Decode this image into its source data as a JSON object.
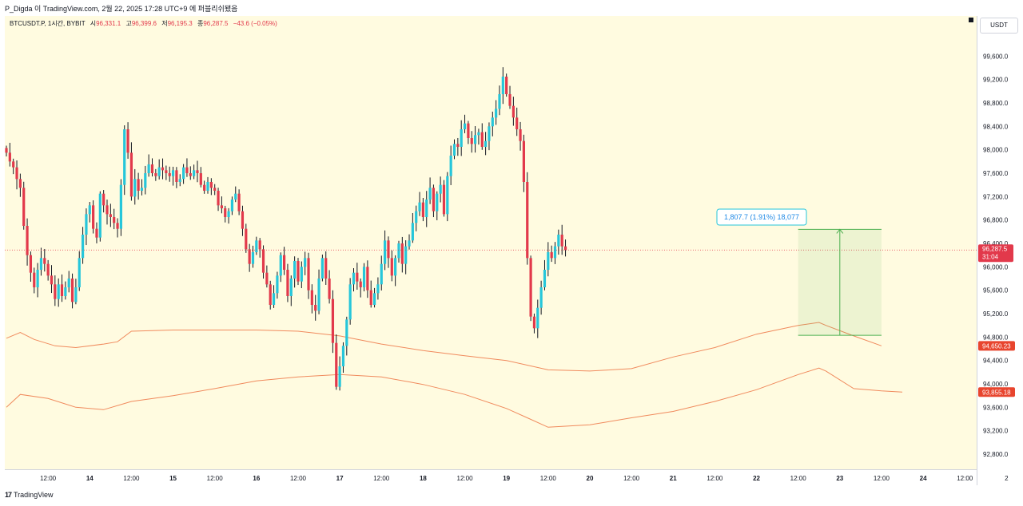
{
  "header": {
    "caption": "P_Digda 이 TradingView.com, 2월 22, 2025 17:28 UTC+9 에 퍼블리쉬됐음"
  },
  "legend": {
    "symbol": "BTCUSDT.P, 1시간, BYBIT",
    "open_label": "시",
    "open_value": "96,331.1",
    "high_label": "고",
    "high_value": "96,399.6",
    "low_label": "저",
    "low_value": "96,195.3",
    "close_label": "종",
    "close_value": "96,287.5",
    "change": "−43.6 (−0.05%)"
  },
  "currency": "USDT",
  "footer": {
    "brand": "TradingView",
    "logo": "17"
  },
  "colors": {
    "up": "#26c6da",
    "down": "#e2394b",
    "band": "#f08a5d",
    "measure": "#4caf50",
    "background": "#fffbe0"
  },
  "chart_data": {
    "type": "candlestick",
    "y_ticks": [
      99600,
      99200,
      98800,
      98400,
      98000,
      97600,
      97200,
      96800,
      96400,
      96000,
      95600,
      95200,
      94800,
      94400,
      94000,
      93600,
      93200,
      92800
    ],
    "y_tick_labels": [
      "99,600.0",
      "99,200.0",
      "98,800.0",
      "98,400.0",
      "98,000.0",
      "97,600.0",
      "97,200.0",
      "96,800.0",
      "96,400.0",
      "96,000.0",
      "95,600.0",
      "95,200.0",
      "94,800.0",
      "94,400.0",
      "94,000.0",
      "93,600.0",
      "93,200.0",
      "92,800.0"
    ],
    "ylim": [
      92650,
      100150
    ],
    "x_ticks": [
      {
        "label": "12:00",
        "t": 12
      },
      {
        "label": "14",
        "t": 24
      },
      {
        "label": "12:00",
        "t": 36
      },
      {
        "label": "15",
        "t": 48
      },
      {
        "label": "12:00",
        "t": 60
      },
      {
        "label": "16",
        "t": 72
      },
      {
        "label": "12:00",
        "t": 84
      },
      {
        "label": "17",
        "t": 96
      },
      {
        "label": "12:00",
        "t": 108
      },
      {
        "label": "18",
        "t": 120
      },
      {
        "label": "12:00",
        "t": 132
      },
      {
        "label": "19",
        "t": 144
      },
      {
        "label": "12:00",
        "t": 156
      },
      {
        "label": "20",
        "t": 168
      },
      {
        "label": "12:00",
        "t": 180
      },
      {
        "label": "21",
        "t": 192
      },
      {
        "label": "12:00",
        "t": 204
      },
      {
        "label": "22",
        "t": 216
      },
      {
        "label": "12:00",
        "t": 228
      },
      {
        "label": "23",
        "t": 240
      },
      {
        "label": "12:00",
        "t": 252
      },
      {
        "label": "24",
        "t": 264
      },
      {
        "label": "12:00",
        "t": 276
      },
      {
        "label": "2",
        "t": 288
      }
    ],
    "bold_tick_labels": [
      "14",
      "15",
      "16",
      "17",
      "18",
      "19",
      "20",
      "21",
      "22",
      "23",
      "24"
    ],
    "candle_closes": [
      97950,
      97800,
      97700,
      97500,
      97350,
      96700,
      96200,
      95900,
      95650,
      95950,
      96150,
      96050,
      95850,
      95700,
      95450,
      95700,
      95500,
      95650,
      95800,
      95400,
      95650,
      96150,
      96550,
      96900,
      97050,
      96650,
      96500,
      97250,
      97050,
      96900,
      96850,
      96750,
      96650,
      97400,
      98350,
      97950,
      97200,
      97500,
      97300,
      97350,
      97600,
      97750,
      97600,
      97550,
      97700,
      97650,
      97600,
      97550,
      97650,
      97450,
      97500,
      97700,
      97600,
      97550,
      97650,
      97600,
      97400,
      97300,
      97450,
      97350,
      97300,
      97050,
      97000,
      96850,
      96950,
      97150,
      97250,
      96950,
      96650,
      96300,
      96050,
      96250,
      96450,
      96300,
      95900,
      95700,
      95350,
      95550,
      95850,
      96200,
      95950,
      95500,
      95800,
      96100,
      95750,
      96000,
      96150,
      95600,
      95350,
      95250,
      95800,
      96150,
      95800,
      95450,
      94700,
      93950,
      94300,
      94650,
      95100,
      95700,
      95900,
      95750,
      95650,
      96000,
      95600,
      95350,
      95550,
      95700,
      96050,
      96450,
      96150,
      95850,
      96150,
      96400,
      96050,
      96350,
      96450,
      96750,
      96950,
      97100,
      96850,
      97150,
      97350,
      96950,
      97250,
      97400,
      96900,
      97550,
      97900,
      98100,
      98050,
      98350,
      98450,
      98200,
      98100,
      98250,
      98300,
      98050,
      98150,
      98400,
      98550,
      98700,
      98950,
      99250,
      98950,
      98750,
      98550,
      98350,
      98150,
      97450,
      96150,
      95150,
      94950,
      95300,
      95650,
      95950,
      96250,
      96150,
      96350,
      96550,
      96350,
      96287.5
    ],
    "current_price": 96287.5,
    "current_price_label": "96,287.5",
    "countdown": "31:04",
    "bands": [
      {
        "name": "upper",
        "last_label": "94,650.23",
        "points": [
          [
            0,
            94780
          ],
          [
            4,
            94880
          ],
          [
            8,
            94760
          ],
          [
            14,
            94650
          ],
          [
            20,
            94620
          ],
          [
            28,
            94680
          ],
          [
            32,
            94720
          ],
          [
            36,
            94900
          ],
          [
            48,
            94920
          ],
          [
            60,
            94920
          ],
          [
            72,
            94920
          ],
          [
            84,
            94900
          ],
          [
            96,
            94820
          ],
          [
            108,
            94680
          ],
          [
            120,
            94570
          ],
          [
            132,
            94480
          ],
          [
            144,
            94400
          ],
          [
            156,
            94240
          ],
          [
            168,
            94220
          ],
          [
            180,
            94260
          ],
          [
            192,
            94460
          ],
          [
            204,
            94620
          ],
          [
            216,
            94850
          ],
          [
            228,
            95000
          ],
          [
            234,
            95050
          ],
          [
            236,
            95000
          ],
          [
            244,
            94820
          ],
          [
            252,
            94650
          ]
        ]
      },
      {
        "name": "lower",
        "last_label": "93,855.18",
        "points": [
          [
            0,
            93600
          ],
          [
            4,
            93820
          ],
          [
            12,
            93750
          ],
          [
            20,
            93600
          ],
          [
            28,
            93560
          ],
          [
            36,
            93700
          ],
          [
            48,
            93800
          ],
          [
            60,
            93920
          ],
          [
            72,
            94050
          ],
          [
            84,
            94120
          ],
          [
            96,
            94160
          ],
          [
            108,
            94120
          ],
          [
            120,
            93990
          ],
          [
            132,
            93820
          ],
          [
            144,
            93580
          ],
          [
            150,
            93420
          ],
          [
            156,
            93260
          ],
          [
            168,
            93300
          ],
          [
            180,
            93420
          ],
          [
            192,
            93530
          ],
          [
            204,
            93700
          ],
          [
            216,
            93900
          ],
          [
            228,
            94160
          ],
          [
            234,
            94270
          ],
          [
            236,
            94220
          ],
          [
            244,
            93920
          ],
          [
            252,
            93880
          ],
          [
            258,
            93860
          ]
        ]
      }
    ],
    "measure": {
      "label": "1,807.7 (1.91%) 18,077",
      "t_start": 228,
      "t_end": 252,
      "price_low": 94830,
      "price_high": 96640
    }
  }
}
